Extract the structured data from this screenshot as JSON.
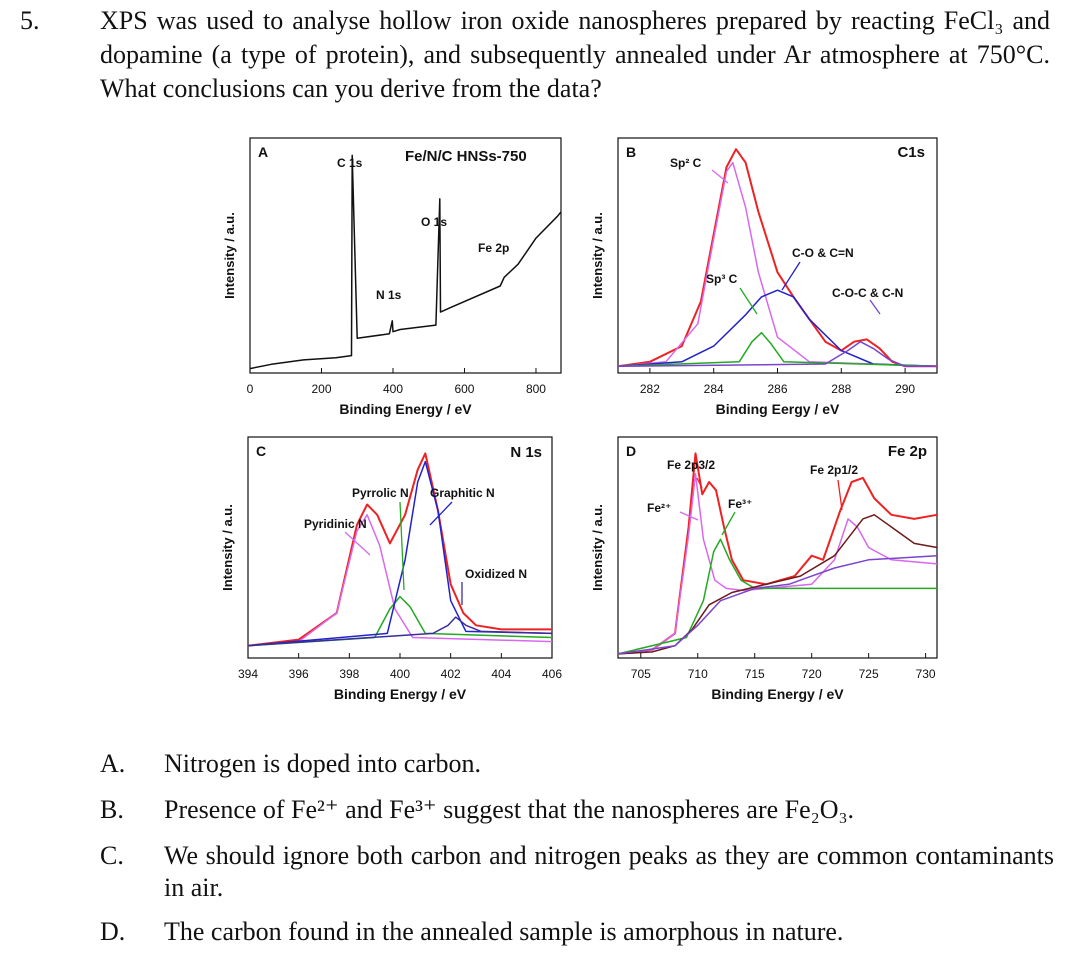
{
  "question": {
    "number": "5.",
    "text": "XPS was used to analyse hollow iron oxide nanospheres prepared by reacting FeCl₃ and dopamine (a type of protein), and subsequently annealed under Ar atmosphere at 750°C. What conclusions can you derive from the data?"
  },
  "options": [
    {
      "letter": "A.",
      "text": "Nitrogen is doped into carbon."
    },
    {
      "letter": "B.",
      "text": "Presence of Fe²⁺ and Fe³⁺ suggest that the nanospheres are Fe₂O₃."
    },
    {
      "letter": "C.",
      "text": "We should ignore both carbon and nitrogen peaks as they are common contaminants in air."
    },
    {
      "letter": "D.",
      "text": "The carbon found in the annealed sample is amorphous in nature."
    }
  ],
  "colors": {
    "red": "#ee2222",
    "magenta": "#d868ee",
    "blue": "#2222cc",
    "green": "#22aa22",
    "brown": "#6b1a1a",
    "purple": "#7a44cc",
    "darkblue": "#3b2e99"
  },
  "chart_data": [
    {
      "type": "line",
      "panel": "A",
      "title": "Fe/N/C HNSs-750",
      "xlabel": "Binding Energy / eV",
      "ylabel": "Intensity / a.u.",
      "xticks": [
        "0",
        "200",
        "400",
        "600",
        "800"
      ],
      "xlim": [
        0,
        870
      ],
      "annotations": [
        "C 1s",
        "N 1s",
        "O 1s",
        "Fe 2p"
      ],
      "series": [
        {
          "x": [
            0,
            60,
            150,
            240,
            284,
            286,
            300,
            390,
            398,
            400,
            420,
            520,
            531,
            533,
            560,
            700,
            711,
            750,
            800,
            860,
            870
          ],
          "y": [
            2,
            4,
            6,
            7,
            8,
            100,
            16,
            18,
            24,
            19,
            20,
            22,
            80,
            28,
            30,
            40,
            44,
            50,
            62,
            72,
            74
          ]
        }
      ]
    },
    {
      "type": "line",
      "panel": "B",
      "title": "C1s",
      "xlabel": "Binding Eergy / eV",
      "ylabel": "Intensity / a.u.",
      "xticks": [
        "282",
        "284",
        "286",
        "288",
        "290"
      ],
      "xlim": [
        281.0,
        291.0
      ],
      "annotations": [
        "Sp² C",
        "Sp³ C",
        "C-O & C=N",
        "C-O-C & C-N"
      ],
      "series": [
        {
          "color_key": "red",
          "x": [
            281.0,
            282.0,
            283.0,
            283.6,
            284.0,
            284.4,
            284.7,
            285.0,
            285.4,
            286.0,
            286.5,
            287.0,
            287.5,
            288.0,
            288.4,
            288.8,
            289.2,
            289.6,
            290.0,
            291.0
          ],
          "y": [
            3,
            5,
            12,
            32,
            62,
            92,
            100,
            94,
            72,
            45,
            34,
            24,
            14,
            10,
            14,
            15,
            11,
            5,
            3,
            3
          ]
        },
        {
          "color_key": "magenta",
          "x": [
            281.0,
            282.5,
            283.5,
            284.0,
            284.4,
            284.6,
            285.0,
            285.4,
            286.0,
            287.0,
            291.0
          ],
          "y": [
            3,
            5,
            22,
            60,
            90,
            94,
            74,
            45,
            16,
            5,
            3
          ]
        },
        {
          "color_key": "blue",
          "x": [
            281.0,
            283.0,
            284.0,
            285.0,
            285.5,
            286.0,
            286.5,
            287.0,
            288.0,
            289.0,
            291.0
          ],
          "y": [
            3,
            5,
            12,
            26,
            34,
            37,
            34,
            24,
            10,
            4,
            3
          ]
        },
        {
          "color_key": "green",
          "x": [
            281.0,
            284.8,
            285.2,
            285.5,
            285.8,
            286.2,
            291.0
          ],
          "y": [
            3,
            5,
            14,
            18,
            13,
            5,
            3
          ]
        },
        {
          "color_key": "purple",
          "x": [
            281.0,
            287.5,
            288.2,
            288.6,
            289.0,
            289.5,
            290.0,
            291.0
          ],
          "y": [
            3,
            4,
            10,
            14,
            11,
            6,
            3,
            3
          ]
        }
      ]
    },
    {
      "type": "line",
      "panel": "C",
      "title": "N 1s",
      "xlabel": "Binding Energy / eV",
      "ylabel": "Intensity / a.u.",
      "xticks": [
        "394",
        "396",
        "398",
        "400",
        "402",
        "404",
        "406"
      ],
      "xlim": [
        394,
        406
      ],
      "annotations": [
        "Pyridinic N",
        "Pyrrolic N",
        "Graphitic N",
        "Oxidized N"
      ],
      "series": [
        {
          "color_key": "red",
          "x": [
            394,
            396,
            397.5,
            398.3,
            398.7,
            399.1,
            399.6,
            400.2,
            400.7,
            401.0,
            401.5,
            402.0,
            402.5,
            403.0,
            404.0,
            406.0
          ],
          "y": [
            6,
            9,
            22,
            65,
            75,
            70,
            56,
            70,
            92,
            100,
            72,
            36,
            22,
            16,
            14,
            14
          ]
        },
        {
          "color_key": "magenta",
          "x": [
            394,
            396,
            397.5,
            398.3,
            398.7,
            399.2,
            399.8,
            400.5,
            406
          ],
          "y": [
            6,
            8,
            22,
            62,
            70,
            55,
            24,
            10,
            8
          ]
        },
        {
          "color_key": "green",
          "x": [
            394,
            399,
            399.6,
            400.0,
            400.4,
            401.0,
            406
          ],
          "y": [
            6,
            10,
            24,
            30,
            25,
            12,
            10
          ]
        },
        {
          "color_key": "blue",
          "x": [
            394,
            399.5,
            400.2,
            400.7,
            401.0,
            401.5,
            402.0,
            402.6,
            406
          ],
          "y": [
            6,
            12,
            48,
            86,
            96,
            72,
            28,
            13,
            12
          ]
        },
        {
          "color_key": "darkblue",
          "x": [
            394,
            401.3,
            401.9,
            402.2,
            402.6,
            403.2,
            406
          ],
          "y": [
            6,
            12,
            16,
            20,
            16,
            13,
            12
          ]
        }
      ]
    },
    {
      "type": "line",
      "panel": "D",
      "title": "Fe 2p",
      "xlabel": "Binding Energy / eV",
      "ylabel": "Intensity / a.u.",
      "xticks": [
        "705",
        "710",
        "715",
        "720",
        "725",
        "730"
      ],
      "xlim": [
        703.0,
        731.0
      ],
      "annotations": [
        "Fe 2p3/2",
        "Fe 2p1/2",
        "Fe²⁺",
        "Fe³⁺"
      ],
      "series": [
        {
          "color_key": "red",
          "x": [
            703,
            706,
            708,
            709.2,
            709.8,
            710.4,
            711.0,
            711.6,
            712.3,
            713.0,
            714.0,
            716.0,
            718.5,
            720.0,
            721.0,
            722.5,
            723.5,
            724.5,
            725.5,
            727.0,
            729.0,
            731.0
          ],
          "y": [
            2,
            4,
            12,
            64,
            100,
            80,
            86,
            82,
            64,
            48,
            38,
            36,
            40,
            50,
            48,
            72,
            86,
            88,
            78,
            70,
            68,
            70
          ]
        },
        {
          "color_key": "magenta",
          "x": [
            703,
            706,
            708,
            709.2,
            709.8,
            710.5,
            711.5,
            712.5,
            714.0,
            720,
            722.0,
            723.2,
            724.0,
            725.0,
            727.0,
            731.0
          ],
          "y": [
            2,
            4,
            12,
            60,
            90,
            58,
            38,
            34,
            33,
            36,
            48,
            68,
            64,
            54,
            48,
            46
          ]
        },
        {
          "color_key": "green",
          "x": [
            703,
            709,
            710.5,
            711.4,
            712.0,
            712.8,
            713.8,
            715.0,
            731
          ],
          "y": [
            2,
            10,
            28,
            52,
            58,
            48,
            38,
            34,
            34
          ]
        },
        {
          "color_key": "brown",
          "x": [
            703,
            706,
            708,
            709.5,
            711,
            713,
            716,
            719,
            722,
            724.5,
            725.5,
            727,
            729,
            731
          ],
          "y": [
            2,
            3,
            6,
            14,
            26,
            32,
            36,
            40,
            50,
            68,
            70,
            64,
            56,
            54
          ]
        },
        {
          "color_key": "purple",
          "x": [
            703,
            708,
            710,
            712,
            715,
            718,
            720,
            722,
            725,
            731
          ],
          "y": [
            2,
            6,
            16,
            28,
            34,
            36,
            40,
            44,
            48,
            50
          ]
        }
      ]
    }
  ]
}
